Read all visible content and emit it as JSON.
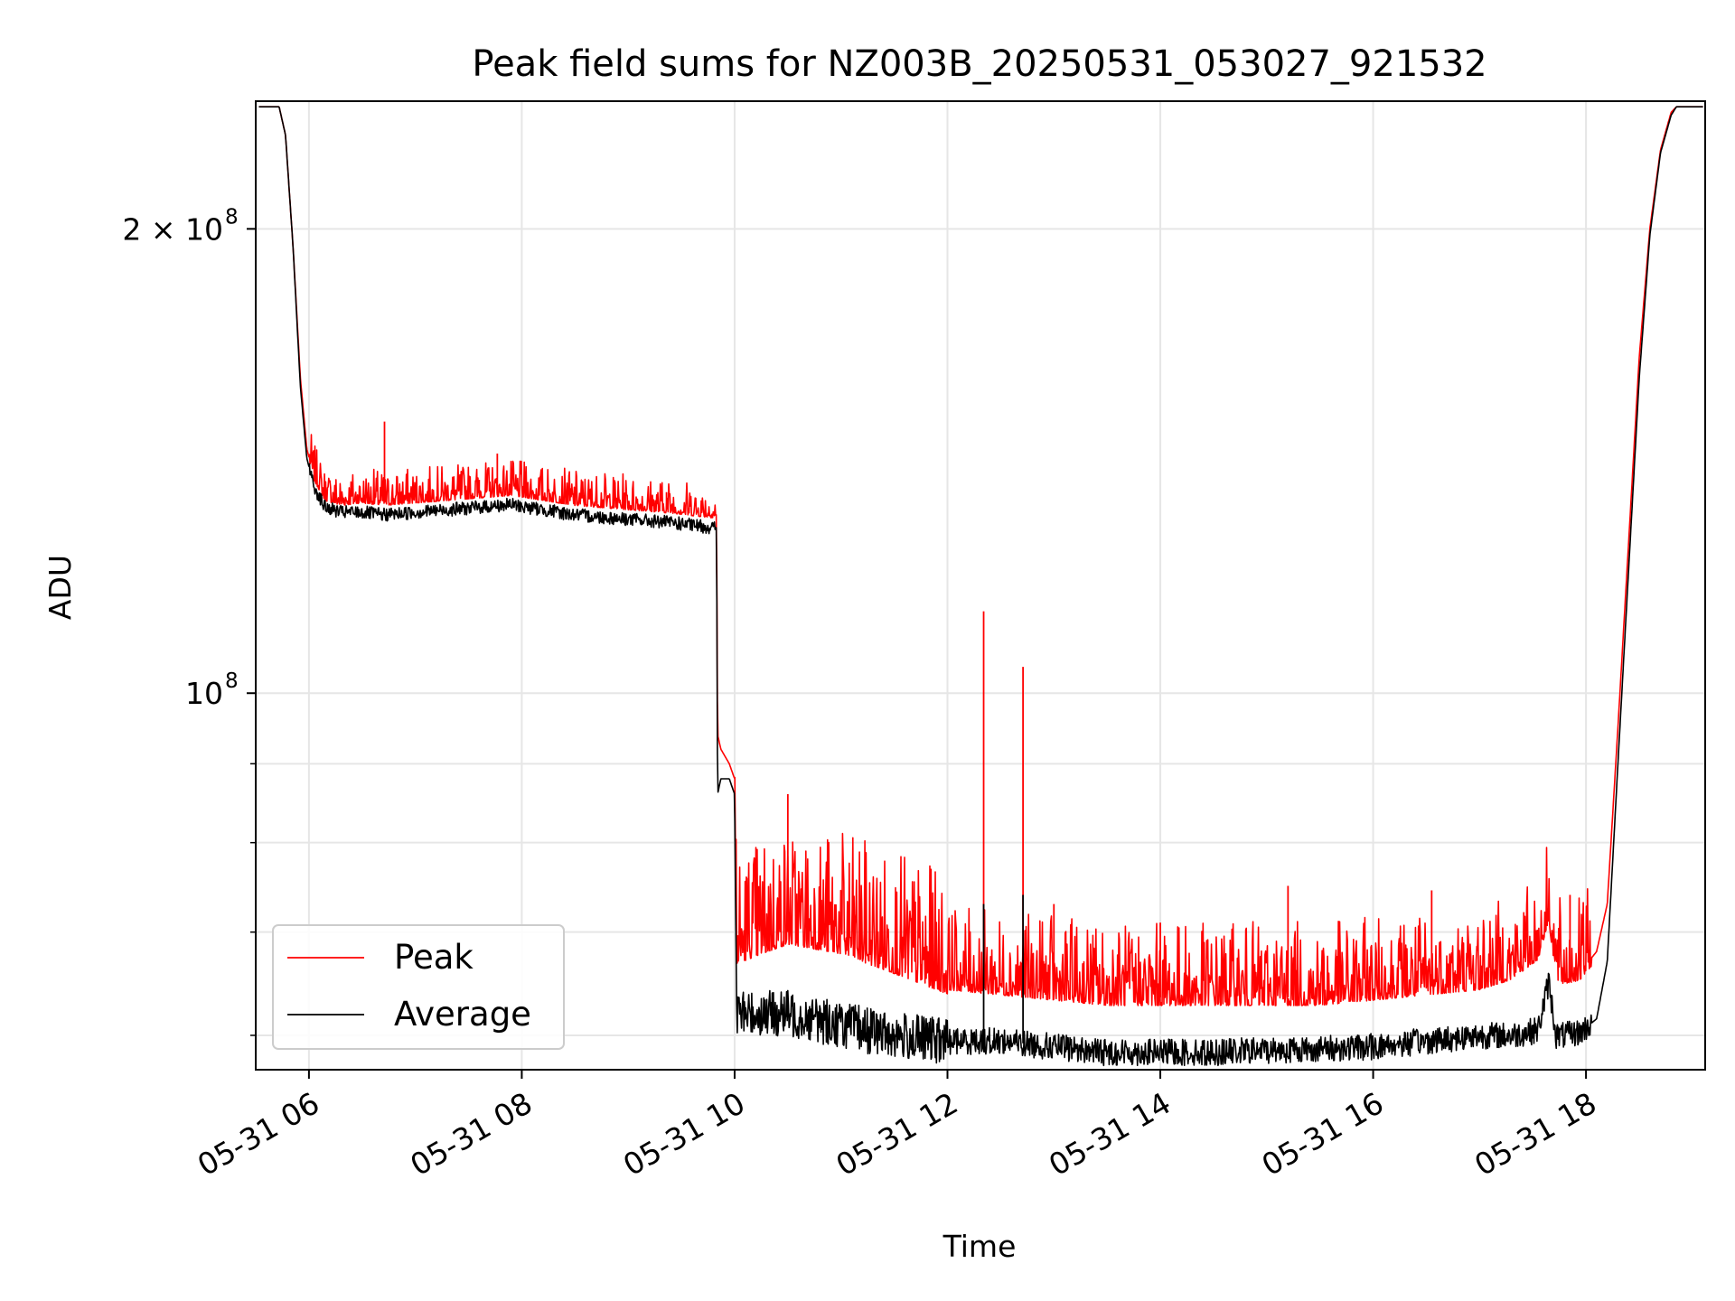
{
  "chart_data": {
    "type": "line",
    "title": "Peak field sums for NZ003B_20250531_053027_921532",
    "xlabel": "Time",
    "ylabel": "ADU",
    "y_scale": "log",
    "grid": true,
    "legend_position": "lower-left",
    "x_range": [
      "2025-05-31 05:30",
      "2025-05-31 19:07"
    ],
    "y_range": [
      57000000,
      242000000
    ],
    "x_tick_labels": [
      "05-31 06",
      "05-31 08",
      "05-31 10",
      "05-31 12",
      "05-31 14",
      "05-31 16",
      "05-31 18"
    ],
    "x_tick_hours": [
      6,
      8,
      10,
      12,
      14,
      16,
      18
    ],
    "y_tick_labels": [
      {
        "value": 200000000,
        "label": "2 × 10",
        "exp": "8"
      },
      {
        "value": 100000000,
        "label": "10",
        "exp": "8"
      }
    ],
    "y_minor_ticks": [
      60000000,
      70000000,
      80000000,
      90000000
    ],
    "series": [
      {
        "name": "Peak",
        "color": "#ff0000",
        "x_hours": [
          5.53,
          5.72,
          5.78,
          5.85,
          5.92,
          5.98,
          6.05,
          6.15,
          6.3,
          6.5,
          6.7,
          7.0,
          7.3,
          7.6,
          7.9,
          8.2,
          8.5,
          8.8,
          9.1,
          9.4,
          9.6,
          9.83,
          9.84,
          9.87,
          9.95,
          10.0,
          10.02,
          10.5,
          11.0,
          11.5,
          12.0,
          12.5,
          13.0,
          13.5,
          14.0,
          14.5,
          15.0,
          15.5,
          16.0,
          16.5,
          17.0,
          17.3,
          17.55,
          17.65,
          17.72,
          17.8,
          17.95,
          18.1,
          18.2,
          18.3,
          18.4,
          18.5,
          18.6,
          18.7,
          18.8,
          18.85,
          18.9,
          19.1
        ],
        "y_values": [
          240000000,
          240000000,
          230000000,
          195000000,
          160000000,
          144000000,
          138000000,
          134000000,
          133000000,
          133500000,
          133000000,
          133500000,
          134000000,
          134500000,
          135000000,
          134000000,
          133000000,
          132500000,
          132000000,
          131500000,
          131000000,
          130500000,
          94000000,
          92000000,
          90000000,
          88000000,
          68000000,
          70000000,
          69000000,
          67000000,
          65000000,
          64500000,
          64000000,
          63500000,
          63500000,
          63500000,
          63500000,
          63500000,
          64000000,
          64500000,
          65000000,
          66000000,
          68000000,
          72000000,
          66000000,
          65500000,
          66000000,
          68000000,
          73000000,
          95000000,
          125000000,
          165000000,
          200000000,
          225000000,
          238000000,
          240000000,
          240000000,
          240000000
        ]
      },
      {
        "name": "Average",
        "color": "#000000",
        "x_hours": [
          5.53,
          5.72,
          5.78,
          5.85,
          5.92,
          5.98,
          6.05,
          6.15,
          6.3,
          6.5,
          6.7,
          7.0,
          7.3,
          7.6,
          7.9,
          8.2,
          8.5,
          8.8,
          9.1,
          9.4,
          9.6,
          9.83,
          9.84,
          9.87,
          9.95,
          10.0,
          10.02,
          10.5,
          11.0,
          11.5,
          12.0,
          12.5,
          13.0,
          13.5,
          14.0,
          14.5,
          15.0,
          15.5,
          16.0,
          16.5,
          17.0,
          17.3,
          17.55,
          17.65,
          17.72,
          17.8,
          17.95,
          18.1,
          18.2,
          18.3,
          18.4,
          18.5,
          18.6,
          18.7,
          18.8,
          18.85,
          18.9,
          19.1
        ],
        "y_values": [
          240000000,
          240000000,
          230000000,
          195000000,
          158000000,
          142000000,
          136000000,
          132000000,
          131000000,
          131000000,
          130500000,
          131000000,
          131500000,
          132000000,
          132500000,
          131500000,
          130500000,
          130000000,
          129500000,
          129000000,
          128500000,
          128000000,
          86000000,
          88000000,
          88000000,
          86000000,
          62000000,
          62000000,
          61000000,
          60000000,
          59500000,
          59500000,
          59000000,
          58500000,
          58500000,
          58500000,
          58700000,
          58800000,
          59000000,
          59500000,
          60000000,
          60000000,
          60500000,
          65000000,
          60000000,
          60000000,
          60300000,
          61500000,
          67000000,
          90000000,
          120000000,
          160000000,
          198000000,
          224000000,
          237000000,
          240000000,
          240000000,
          240000000
        ]
      }
    ],
    "spikes": [
      {
        "series": "Peak",
        "x_hour": 6.71,
        "y": 150000000
      },
      {
        "series": "Peak",
        "x_hour": 7.6,
        "y": 137500000
      },
      {
        "series": "Peak",
        "x_hour": 7.77,
        "y": 143000000
      },
      {
        "series": "Peak",
        "x_hour": 9.36,
        "y": 135000000
      },
      {
        "series": "Peak",
        "x_hour": 10.5,
        "y": 86000000
      },
      {
        "series": "Peak",
        "x_hour": 12.34,
        "y": 113000000
      },
      {
        "series": "Peak",
        "x_hour": 12.71,
        "y": 104000000
      },
      {
        "series": "Peak",
        "x_hour": 13.0,
        "y": 73000000
      },
      {
        "series": "Peak",
        "x_hour": 14.0,
        "y": 71000000
      },
      {
        "series": "Peak",
        "x_hour": 15.2,
        "y": 75000000
      },
      {
        "series": "Peak",
        "x_hour": 16.55,
        "y": 74500000
      },
      {
        "series": "Peak",
        "x_hour": 17.85,
        "y": 74000000
      },
      {
        "series": "Average",
        "x_hour": 12.34,
        "y": 73000000
      },
      {
        "series": "Average",
        "x_hour": 12.71,
        "y": 74000000
      }
    ]
  }
}
